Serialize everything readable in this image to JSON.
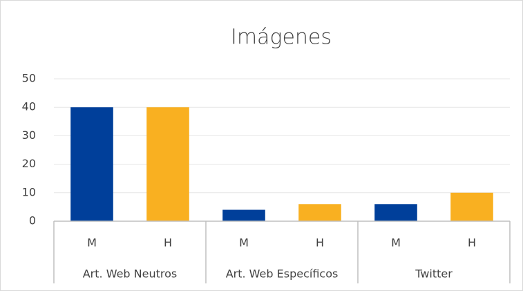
{
  "chart_data": {
    "type": "bar",
    "title": "Imágenes",
    "categories": [
      "M",
      "H",
      "M",
      "H",
      "M",
      "H"
    ],
    "groups": [
      {
        "label": "Art. Web Neutros",
        "span": 2
      },
      {
        "label": "Art. Web Específicos",
        "span": 2
      },
      {
        "label": "Twitter",
        "span": 2
      }
    ],
    "values": [
      40,
      40,
      4,
      6,
      6,
      10
    ],
    "colors": [
      "#003f9a",
      "#f9b021",
      "#003f9a",
      "#f9b021",
      "#003f9a",
      "#f9b021"
    ],
    "ylim": [
      0,
      50
    ],
    "yticks": [
      0,
      10,
      20,
      30,
      40,
      50
    ],
    "grid": true
  }
}
